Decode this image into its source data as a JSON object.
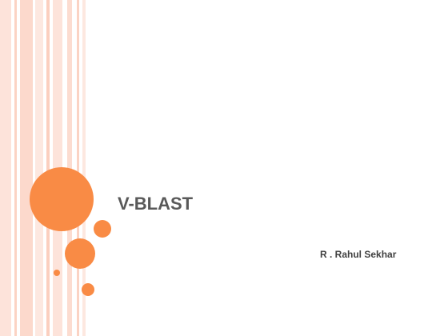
{
  "slide": {
    "title": "V-BLAST",
    "author": "R . Rahul Sekhar"
  }
}
